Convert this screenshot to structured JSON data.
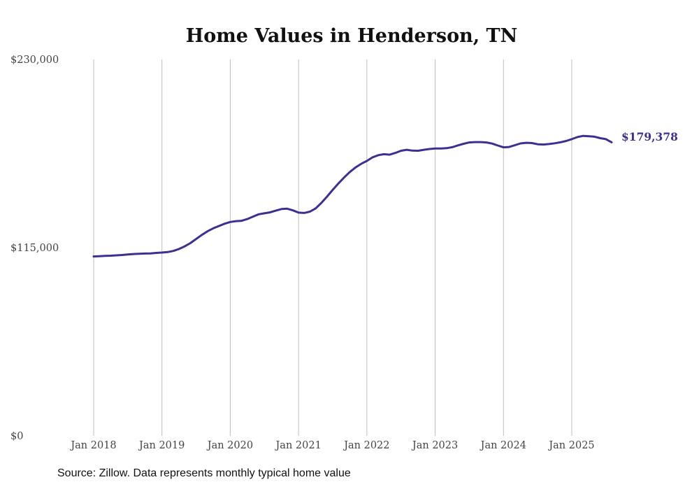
{
  "chart_data": {
    "type": "line",
    "title": "Home Values in Henderson, TN",
    "xlabel": "",
    "ylabel": "",
    "x_start": "Jan 2018",
    "x_frequency": "monthly",
    "x_tick_labels": [
      "Jan 2018",
      "Jan 2019",
      "Jan 2020",
      "Jan 2021",
      "Jan 2022",
      "Jan 2023",
      "Jan 2024",
      "Jan 2025"
    ],
    "y_tick_labels": [
      "$0",
      "$115,000",
      "$230,000"
    ],
    "y_ticks": [
      0,
      115000,
      230000
    ],
    "ylim": [
      0,
      230000
    ],
    "grid": "vertical lines at each January",
    "series": [
      {
        "name": "Typical home value",
        "color": "#3b3190",
        "end_label": "$179,378",
        "values": [
          109600,
          109800,
          110000,
          110100,
          110300,
          110500,
          110800,
          111100,
          111300,
          111400,
          111500,
          111800,
          112000,
          112300,
          113000,
          114200,
          115800,
          117800,
          120300,
          122800,
          125000,
          126800,
          128200,
          129600,
          130700,
          131200,
          131400,
          132500,
          134000,
          135400,
          136000,
          136600,
          137600,
          138600,
          138800,
          137800,
          136400,
          136200,
          137000,
          139000,
          142300,
          146200,
          150300,
          154200,
          157900,
          161200,
          164000,
          166200,
          168000,
          170200,
          171500,
          172100,
          171800,
          172900,
          174200,
          174800,
          174300,
          174200,
          174800,
          175300,
          175600,
          175600,
          175800,
          176400,
          177500,
          178500,
          179300,
          179500,
          179500,
          179300,
          178600,
          177400,
          176300,
          176500,
          177600,
          178700,
          179100,
          178900,
          178200,
          178000,
          178300,
          178800,
          179400,
          180200,
          181300,
          182600,
          183300,
          183100,
          182800,
          181900,
          181300,
          179378
        ]
      }
    ]
  },
  "source": "Source: Zillow. Data represents monthly typical home value"
}
